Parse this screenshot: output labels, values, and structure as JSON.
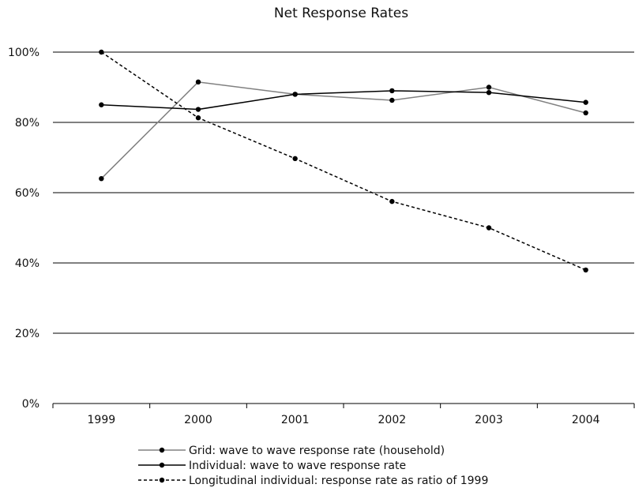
{
  "chart_data": {
    "type": "line",
    "title": "Net Response Rates",
    "xlabel": "",
    "ylabel": "",
    "categories": [
      "1999",
      "2000",
      "2001",
      "2002",
      "2003",
      "2004"
    ],
    "ylim": [
      0,
      100
    ],
    "y_ticks": [
      "0%",
      "20%",
      "40%",
      "60%",
      "80%",
      "100%"
    ],
    "y_tick_values": [
      0,
      20,
      40,
      60,
      80,
      100
    ],
    "grid": "horizontal",
    "legend_position": "bottom",
    "series": [
      {
        "name": "Grid: wave to wave response rate (household)",
        "values": [
          64,
          91.5,
          88,
          86.3,
          90,
          82.7
        ],
        "color": "#808080",
        "style": "solid"
      },
      {
        "name": "Individual: wave to wave response rate",
        "values": [
          85,
          83.7,
          88,
          89,
          88.5,
          85.7
        ],
        "color": "#000000",
        "style": "solid"
      },
      {
        "name": "Longitudinal individual: response rate as ratio of 1999",
        "values": [
          100,
          81.3,
          69.7,
          57.5,
          50,
          38
        ],
        "color": "#000000",
        "style": "dashed"
      }
    ]
  }
}
